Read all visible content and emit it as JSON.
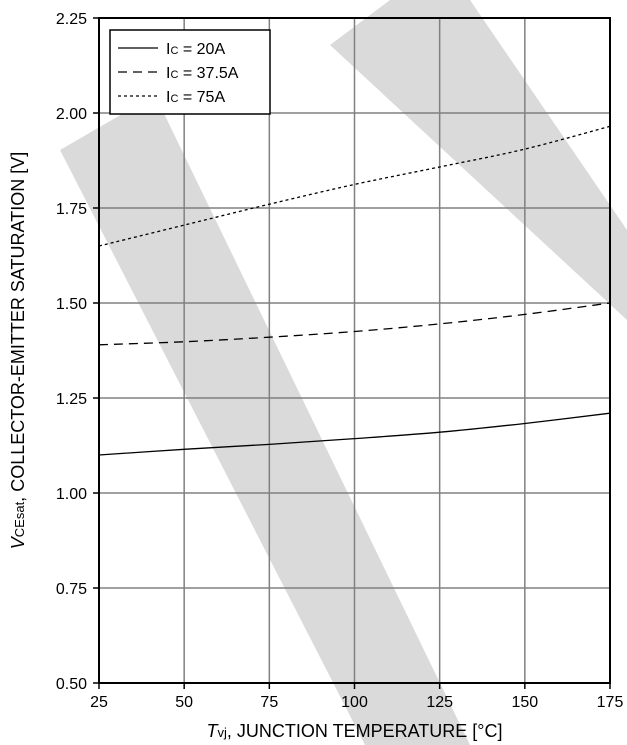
{
  "chart_data": {
    "type": "line",
    "xlabel": {
      "var": "T",
      "sub": "vj",
      "text": ", JUNCTION TEMPERATURE [°C]"
    },
    "ylabel": {
      "var": "V",
      "sub": "CEsat",
      "text": ", COLLECTOR-EMITTER SATURATION [V]"
    },
    "xlim": [
      25,
      175
    ],
    "ylim": [
      0.5,
      2.25
    ],
    "xticks": [
      25,
      50,
      75,
      100,
      125,
      150,
      175
    ],
    "xtick_labels": [
      "25",
      "50",
      "75",
      "100",
      "125",
      "150",
      "175"
    ],
    "yticks": [
      0.5,
      0.75,
      1.0,
      1.25,
      1.5,
      1.75,
      2.0,
      2.25
    ],
    "ytick_labels": [
      "0.50",
      "0.75",
      "1.00",
      "1.25",
      "1.50",
      "1.75",
      "2.00",
      "2.25"
    ],
    "grid": true,
    "legend_position": "top-left",
    "series": [
      {
        "name": "IC = 20A",
        "legend": {
          "var": "I",
          "sub": "C",
          "text": " = 20A"
        },
        "style": "solid",
        "x": [
          25,
          50,
          75,
          100,
          125,
          150,
          175
        ],
        "y": [
          1.1,
          1.115,
          1.128,
          1.143,
          1.16,
          1.183,
          1.21
        ]
      },
      {
        "name": "IC = 37.5A",
        "legend": {
          "var": "I",
          "sub": "C",
          "text": " = 37.5A"
        },
        "style": "dashed",
        "x": [
          25,
          50,
          75,
          100,
          125,
          150,
          175
        ],
        "y": [
          1.39,
          1.398,
          1.41,
          1.425,
          1.445,
          1.47,
          1.5
        ]
      },
      {
        "name": "IC = 75A",
        "legend": {
          "var": "I",
          "sub": "C",
          "text": " = 75A"
        },
        "style": "dotted",
        "x": [
          25,
          50,
          75,
          100,
          125,
          150,
          175
        ],
        "y": [
          1.65,
          1.705,
          1.76,
          1.812,
          1.858,
          1.905,
          1.965
        ]
      }
    ]
  }
}
